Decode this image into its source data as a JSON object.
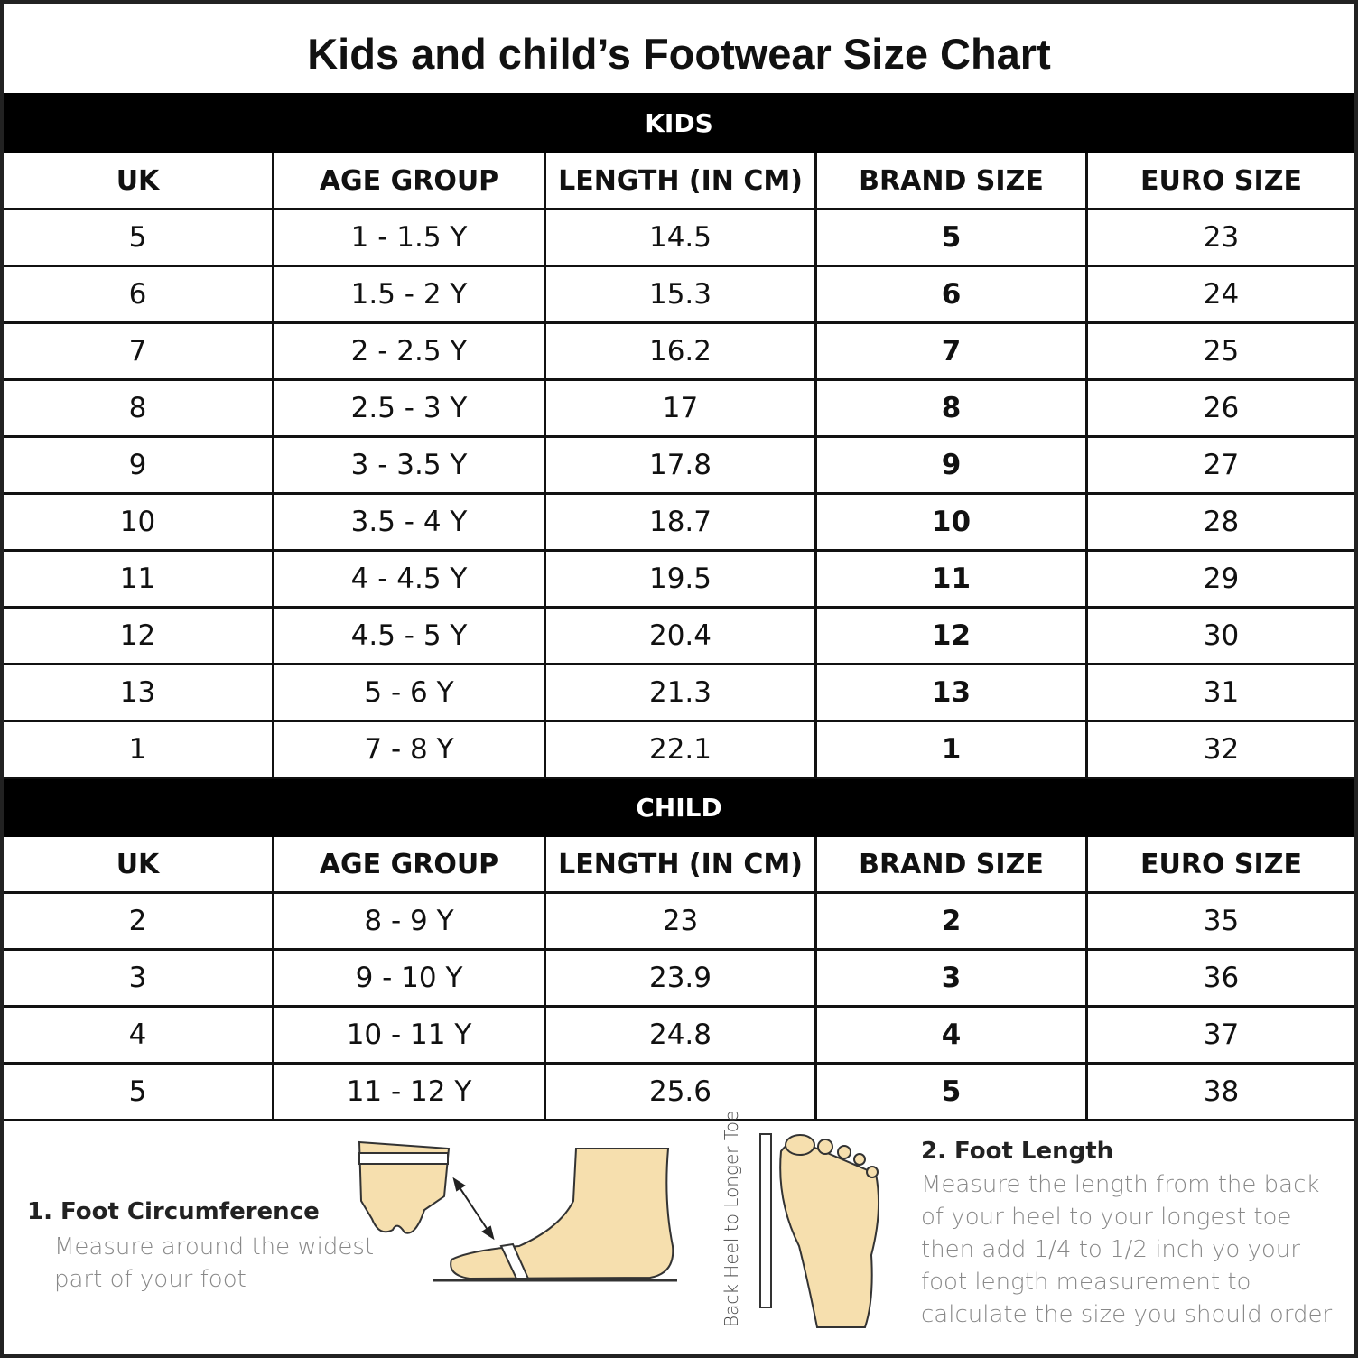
{
  "title": "Kids and child’s Footwear Size Chart",
  "sections": [
    {
      "title": "KIDS",
      "header": [
        "UK",
        "AGE GROUP",
        "LENGTH (IN CM)",
        "BRAND SIZE",
        "EURO SIZE"
      ],
      "rows": [
        [
          "5",
          "1 - 1.5 Y",
          "14.5",
          "5",
          "23"
        ],
        [
          "6",
          "1.5 - 2 Y",
          "15.3",
          "6",
          "24"
        ],
        [
          "7",
          "2 - 2.5 Y",
          "16.2",
          "7",
          "25"
        ],
        [
          "8",
          "2.5 - 3 Y",
          "17",
          "8",
          "26"
        ],
        [
          "9",
          "3 - 3.5 Y",
          "17.8",
          "9",
          "27"
        ],
        [
          "10",
          "3.5 - 4 Y",
          "18.7",
          "10",
          "28"
        ],
        [
          "11",
          "4 - 4.5 Y",
          "19.5",
          "11",
          "29"
        ],
        [
          "12",
          "4.5 - 5 Y",
          "20.4",
          "12",
          "30"
        ],
        [
          "13",
          "5 - 6 Y",
          "21.3",
          "13",
          "31"
        ],
        [
          "1",
          "7 - 8 Y",
          "22.1",
          "1",
          "32"
        ]
      ]
    },
    {
      "title": "CHILD",
      "header": [
        "UK",
        "AGE GROUP",
        "LENGTH (IN CM)",
        "BRAND SIZE",
        "EURO SIZE"
      ],
      "rows": [
        [
          "2",
          "8 - 9 Y",
          "23",
          "2",
          "35"
        ],
        [
          "3",
          "9 - 10 Y",
          "23.9",
          "3",
          "36"
        ],
        [
          "4",
          "10 - 11 Y",
          "24.8",
          "4",
          "37"
        ],
        [
          "5",
          "11 - 12 Y",
          "25.6",
          "5",
          "38"
        ]
      ]
    }
  ],
  "footer": {
    "circumference": {
      "title": "1. Foot Circumference",
      "text": "Measure around the widest part of your foot"
    },
    "ruler_label": "Back Heel to Longer Toe",
    "length": {
      "title": "2. Foot Length",
      "text": "Measure the length from the back of your heel to your longest toe then add 1/4 to 1/2 inch yo your foot length measurement to calculate the size you should order"
    }
  }
}
